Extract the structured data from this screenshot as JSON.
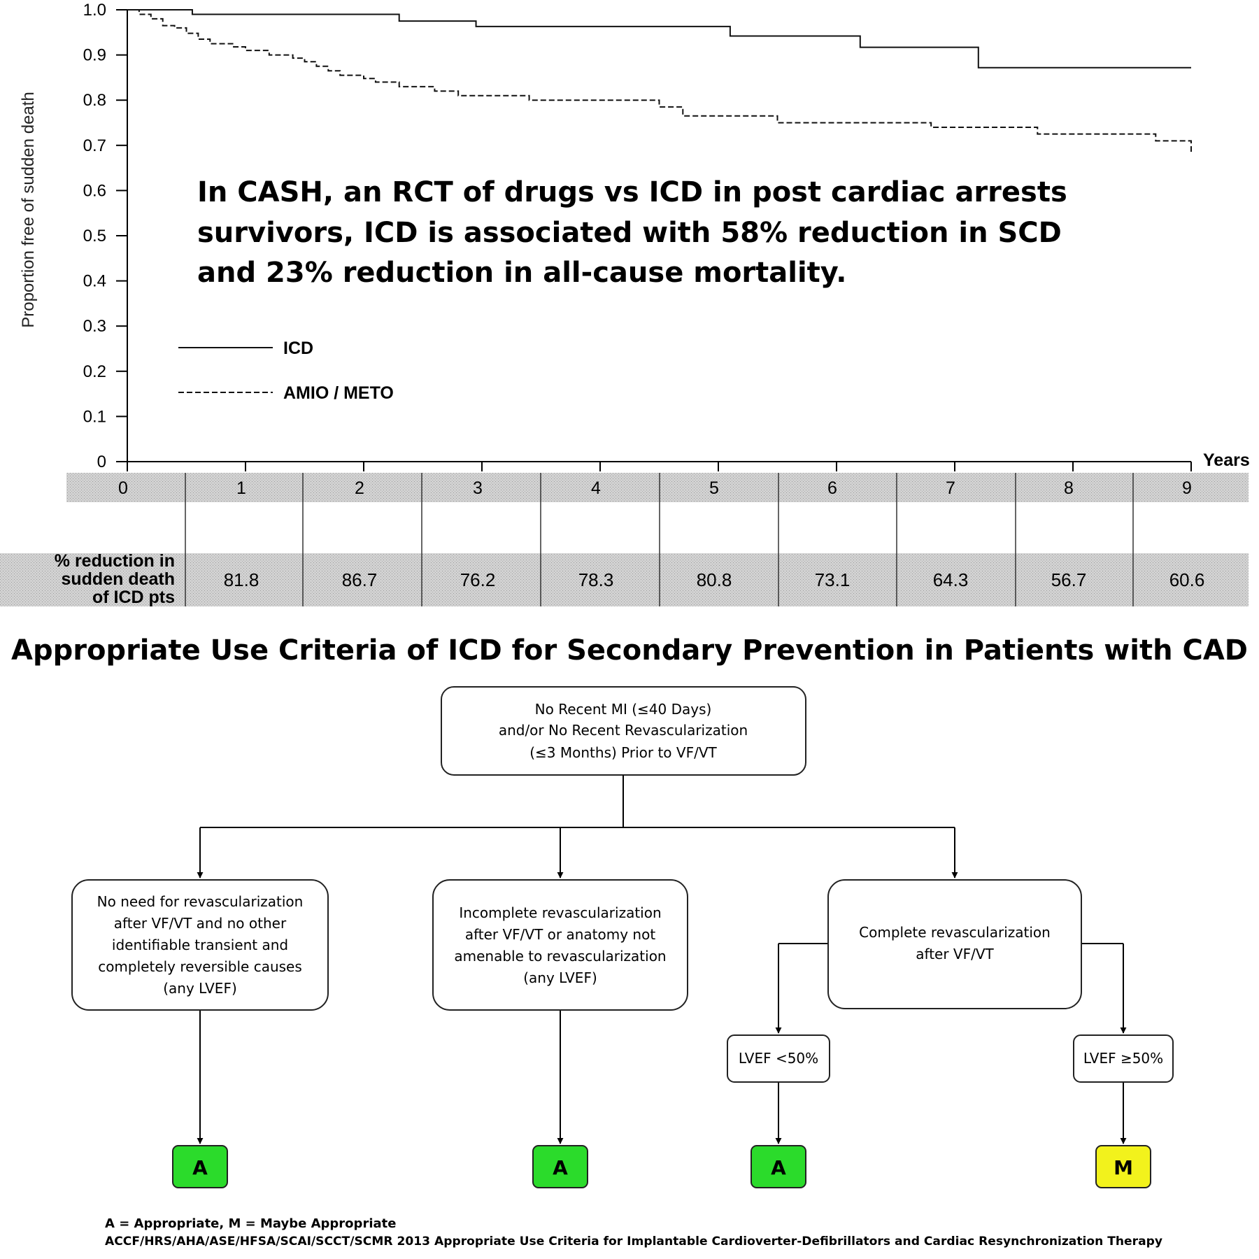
{
  "chart_data": {
    "type": "line",
    "ylabel": "Proportion free of sudden death",
    "xlabel": "Years",
    "xlim": [
      0,
      9
    ],
    "ylim": [
      0,
      1.0
    ],
    "y_ticks": [
      "0",
      "0.1",
      "0.2",
      "0.3",
      "0.4",
      "0.5",
      "0.6",
      "0.7",
      "0.8",
      "0.9",
      "1.0"
    ],
    "x_ticks": [
      "0",
      "1",
      "2",
      "3",
      "4",
      "5",
      "6",
      "7",
      "8",
      "9"
    ],
    "grid": false,
    "legend_position": "lower-left",
    "series": [
      {
        "name": "ICD",
        "style": "solid",
        "x": [
          0,
          0.55,
          2.3,
          2.95,
          5.1,
          6.2,
          7.2,
          9
        ],
        "y": [
          1.0,
          0.99,
          0.975,
          0.963,
          0.942,
          0.917,
          0.872,
          0.872
        ]
      },
      {
        "name": "AMIO / METO",
        "style": "dashed",
        "x": [
          0,
          0.1,
          0.2,
          0.3,
          0.4,
          0.5,
          0.6,
          0.7,
          0.9,
          1.0,
          1.2,
          1.4,
          1.5,
          1.6,
          1.7,
          1.8,
          2.0,
          2.1,
          2.3,
          2.6,
          2.8,
          3.4,
          4.5,
          4.7,
          5.5,
          6.8,
          7.7,
          8.7,
          9.0
        ],
        "y": [
          1.0,
          0.99,
          0.98,
          0.965,
          0.96,
          0.948,
          0.935,
          0.925,
          0.918,
          0.91,
          0.9,
          0.893,
          0.885,
          0.875,
          0.865,
          0.855,
          0.848,
          0.84,
          0.83,
          0.82,
          0.81,
          0.8,
          0.785,
          0.765,
          0.75,
          0.74,
          0.725,
          0.71,
          0.68
        ]
      }
    ],
    "annotation": "In CASH, an RCT of drugs vs ICD in post cardiac arrests survivors, ICD is associated with 58% reduction in SCD and 23% reduction in all-cause mortality.",
    "annotation_lines": [
      "In CASH, an RCT of drugs vs ICD in post cardiac arrests",
      "survivors, ICD is associated with 58% reduction in SCD",
      "and 23% reduction in all-cause mortality."
    ],
    "table": {
      "row_label_lines": [
        "% reduction in",
        "sudden death",
        "of ICD pts"
      ],
      "years": [
        "1",
        "2",
        "3",
        "4",
        "5",
        "6",
        "7",
        "8",
        "9"
      ],
      "values": [
        "81.8",
        "86.7",
        "76.2",
        "78.3",
        "80.8",
        "73.1",
        "64.3",
        "56.7",
        "60.6"
      ]
    }
  },
  "flowchart": {
    "title": "Appropriate Use Criteria of ICD for Secondary Prevention in Patients with CAD",
    "root_lines": [
      "No Recent MI (≤40 Days)",
      "and/or No Recent Revascularization",
      "(≤3 Months) Prior to VF/VT"
    ],
    "branch1_lines": [
      "No need for revascularization",
      "after VF/VT and no other",
      "identifiable transient and",
      "completely reversible causes",
      "(any LVEF)"
    ],
    "branch2_lines": [
      "Incomplete revascularization",
      "after VF/VT or anatomy not",
      "amenable to revascularization",
      "(any LVEF)"
    ],
    "branch3_lines": [
      "Complete revascularization",
      "after VF/VT"
    ],
    "lvef_low": "LVEF <50%",
    "lvef_high": "LVEF ≥50%",
    "outcome_1": "A",
    "outcome_2": "A",
    "outcome_3": "A",
    "outcome_4": "M",
    "colors": {
      "appropriate": "#2bdb2b",
      "maybe": "#f2f21c"
    }
  },
  "footer": {
    "legend": "A = Appropriate, M = Maybe Appropriate",
    "source": "ACCF/HRS/AHA/ASE/HFSA/SCAI/SCCT/SCMR 2013 Appropriate Use Criteria for Implantable Cardioverter-Defibrillators and Cardiac Resynchronization Therapy"
  }
}
